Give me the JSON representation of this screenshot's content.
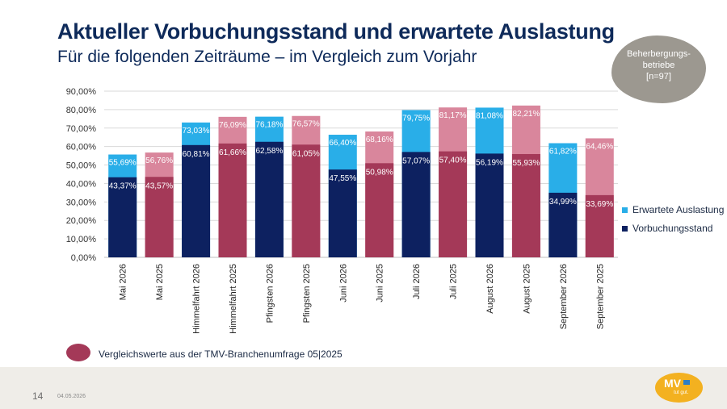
{
  "header": {
    "title": "Aktueller Vorbuchungsstand und erwartete Auslastung",
    "subtitle": "Für die folgenden Zeiträume – im Vergleich zum Vorjahr"
  },
  "badge": {
    "line1": "Beherbergungs-",
    "line2": "betriebe",
    "line3": "[n=97]",
    "color": "#9c9890"
  },
  "legend": {
    "expected": "Erwartete Auslastung",
    "booked": "Vorbuchungsstand"
  },
  "note": {
    "text": "Vergleichswerte aus der TMV-Branchenumfrage 05|2025"
  },
  "footer": {
    "page": "14",
    "date": "04.05.2026",
    "logo_text": "MV",
    "logo_sub": "tut gut."
  },
  "colors": {
    "booked_current": "#0d2160",
    "expected_current": "#29aee8",
    "booked_prior": "#a43958",
    "expected_prior": "#d9869c"
  },
  "chart_data": {
    "type": "bar",
    "stacked": "overlay",
    "categories": [
      "Mai 2026",
      "Mai 2025",
      "Himmelfahrt 2026",
      "Himmelfahrt 2025",
      "Pfingsten 2026",
      "Pfingsten 2025",
      "Juni 2026",
      "Juni 2025",
      "Juli 2026",
      "Juli 2025",
      "August 2026",
      "August 2025",
      "September 2026",
      "September 2025"
    ],
    "comparison": [
      false,
      true,
      false,
      true,
      false,
      true,
      false,
      true,
      false,
      true,
      false,
      true,
      false,
      true
    ],
    "series": [
      {
        "name": "Erwartete Auslastung",
        "values": [
          55.69,
          56.76,
          73.03,
          76.09,
          76.18,
          76.57,
          66.4,
          68.16,
          79.75,
          81.17,
          81.08,
          82.21,
          61.82,
          64.46
        ]
      },
      {
        "name": "Vorbuchungsstand",
        "values": [
          43.37,
          43.57,
          60.81,
          61.66,
          62.58,
          61.05,
          47.55,
          50.98,
          57.07,
          57.4,
          56.19,
          55.93,
          34.99,
          33.69
        ]
      }
    ],
    "expected_labels": [
      "55,69%",
      "56,76%",
      "73,03%",
      "76,09%",
      "76,18%",
      "76,57%",
      "66,40%",
      "68,16%",
      "79,75%",
      "81,17%",
      "81,08%",
      "82,21%",
      "61,82%",
      "64,46%"
    ],
    "booked_labels": [
      "43,37%",
      "43,57%",
      "60,81%",
      "61,66%",
      "62,58%",
      "61,05%",
      "47,55%",
      "50,98%",
      "57,07%",
      "57,40%",
      "56,19%",
      "55,93%",
      "34,99%",
      "33,69%"
    ],
    "yticks": [
      "0,00%",
      "10,00%",
      "20,00%",
      "30,00%",
      "40,00%",
      "50,00%",
      "60,00%",
      "70,00%",
      "80,00%",
      "90,00%"
    ],
    "ylim": [
      0,
      90
    ],
    "grid": true,
    "legend_position": "right"
  }
}
